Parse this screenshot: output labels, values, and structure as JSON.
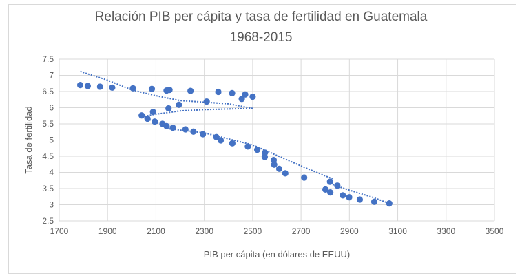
{
  "chart_data": {
    "type": "scatter",
    "title": [
      "Relación PIB per cápita y tasa de fertilidad en Guatemala",
      "1968-2015"
    ],
    "xlabel": "PIB per cápita (en dólares de EEUU)",
    "ylabel": "Tasa de fertilidad",
    "xlim": [
      1700,
      3500
    ],
    "ylim": [
      2.5,
      7.5
    ],
    "xticks": [
      "1700",
      "1900",
      "2100",
      "2300",
      "2500",
      "2700",
      "2900",
      "3100",
      "3300",
      "3500"
    ],
    "yticks": [
      "2.5",
      "3",
      "3.5",
      "4",
      "4.5",
      "5",
      "5.5",
      "6",
      "6.5",
      "7",
      "7.5"
    ],
    "grid": true,
    "color": "#4472c4",
    "points": [
      [
        1787,
        6.7
      ],
      [
        1818,
        6.67
      ],
      [
        1869,
        6.65
      ],
      [
        1919,
        6.62
      ],
      [
        2005,
        6.6
      ],
      [
        2083,
        6.58
      ],
      [
        2144,
        6.53
      ],
      [
        2156,
        6.55
      ],
      [
        2243,
        6.52
      ],
      [
        2358,
        6.49
      ],
      [
        2415,
        6.45
      ],
      [
        2469,
        6.41
      ],
      [
        2455,
        6.27
      ],
      [
        2500,
        6.34
      ],
      [
        2310,
        6.19
      ],
      [
        2195,
        6.09
      ],
      [
        2152,
        5.98
      ],
      [
        2088,
        5.87
      ],
      [
        2041,
        5.76
      ],
      [
        2065,
        5.66
      ],
      [
        2095,
        5.57
      ],
      [
        2127,
        5.5
      ],
      [
        2144,
        5.43
      ],
      [
        2170,
        5.38
      ],
      [
        2222,
        5.33
      ],
      [
        2255,
        5.26
      ],
      [
        2294,
        5.18
      ],
      [
        2350,
        5.09
      ],
      [
        2368,
        4.99
      ],
      [
        2416,
        4.9
      ],
      [
        2480,
        4.8
      ],
      [
        2519,
        4.7
      ],
      [
        2551,
        4.61
      ],
      [
        2550,
        4.48
      ],
      [
        2587,
        4.38
      ],
      [
        2589,
        4.24
      ],
      [
        2610,
        4.11
      ],
      [
        2635,
        3.97
      ],
      [
        2713,
        3.84
      ],
      [
        2820,
        3.71
      ],
      [
        2850,
        3.59
      ],
      [
        2801,
        3.47
      ],
      [
        2821,
        3.38
      ],
      [
        2873,
        3.29
      ],
      [
        2899,
        3.23
      ],
      [
        2943,
        3.16
      ],
      [
        3003,
        3.09
      ],
      [
        3065,
        3.04
      ]
    ],
    "trendlines": [
      [
        [
          1787,
          7.12
        ],
        [
          1900,
          6.85
        ],
        [
          2000,
          6.55
        ],
        [
          2100,
          6.37
        ],
        [
          2200,
          6.22
        ],
        [
          2300,
          6.17
        ],
        [
          2400,
          6.12
        ],
        [
          2500,
          5.98
        ]
      ],
      [
        [
          2041,
          5.72
        ],
        [
          2100,
          5.8
        ],
        [
          2200,
          5.9
        ],
        [
          2300,
          5.94
        ],
        [
          2400,
          5.96
        ],
        [
          2500,
          5.98
        ]
      ],
      [
        [
          2041,
          5.72
        ],
        [
          2100,
          5.55
        ],
        [
          2150,
          5.35
        ],
        [
          2300,
          5.22
        ],
        [
          2500,
          4.85
        ],
        [
          2700,
          4.2
        ],
        [
          2830,
          3.8
        ]
      ],
      [
        [
          2820,
          3.65
        ],
        [
          2900,
          3.45
        ],
        [
          3000,
          3.22
        ],
        [
          3065,
          3.04
        ]
      ]
    ]
  }
}
